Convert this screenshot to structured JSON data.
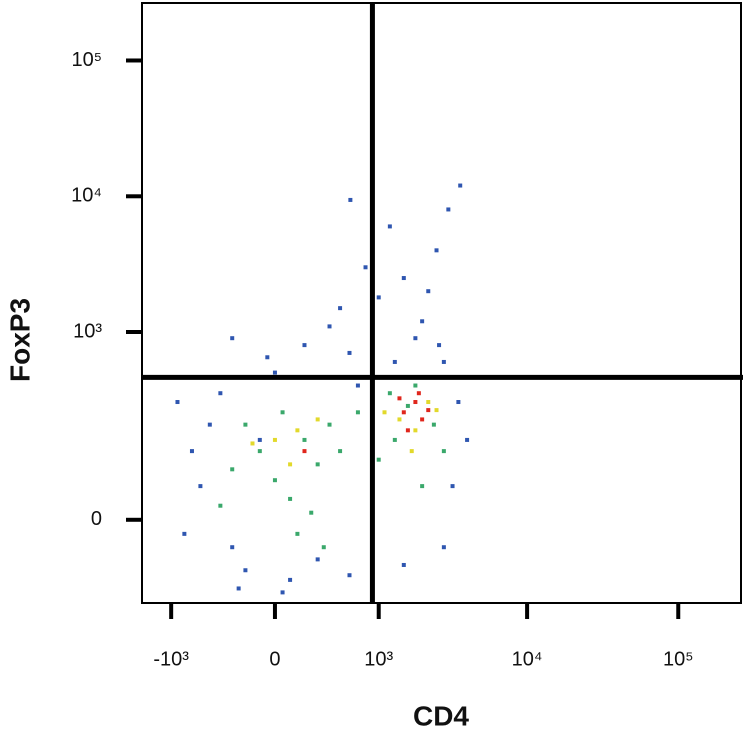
{
  "chart_data": {
    "type": "scatter",
    "xlabel": "CD4",
    "ylabel": "FoxP3",
    "xscale": "biexponential",
    "yscale": "biexponential",
    "xlim": [
      -1600,
      260000
    ],
    "ylim": [
      -160,
      265000
    ],
    "xticks": [
      {
        "value": -1000,
        "label": "-10³"
      },
      0,
      {
        "value": 1000,
        "label": "10³"
      },
      {
        "value": 10000,
        "label": "10⁴"
      },
      {
        "value": 100000,
        "label": "10⁵"
      }
    ],
    "yticks": [
      0,
      {
        "value": 1000,
        "label": "10³"
      },
      {
        "value": 10000,
        "label": "10⁴"
      },
      {
        "value": 100000,
        "label": "10⁵"
      }
    ],
    "quadrant_x": 900,
    "quadrant_y": 460,
    "series": [
      {
        "color": "#2f56b0",
        "x": [
          -600,
          -300,
          -100,
          -500,
          -200,
          100,
          300,
          600,
          -400,
          0,
          200,
          500,
          800,
          1200,
          1500,
          2000,
          2500,
          3000,
          1800,
          1000,
          600,
          -50,
          -700,
          -800,
          3500,
          4000,
          3200,
          2800,
          1500,
          900,
          -250,
          50,
          700,
          1300,
          2200,
          2600,
          -900,
          400,
          -300,
          3600,
          2800,
          610
        ],
        "y": [
          50,
          -40,
          150,
          200,
          -80,
          -100,
          -60,
          -90,
          350,
          500,
          800,
          1500,
          3000,
          6000,
          2500,
          1200,
          4000,
          8000,
          900,
          1800,
          700,
          650,
          120,
          -20,
          300,
          150,
          50,
          -40,
          -70,
          -100,
          -120,
          -130,
          400,
          600,
          2000,
          800,
          300,
          1100,
          900,
          12000,
          600,
          9400
        ]
      },
      {
        "color": "#3aa86b",
        "x": [
          -300,
          -100,
          0,
          100,
          200,
          300,
          400,
          -200,
          50,
          150,
          250,
          500,
          700,
          1000,
          1300,
          1600,
          2000,
          2400,
          2800,
          1200,
          1800,
          900,
          -400,
          350
        ],
        "y": [
          80,
          120,
          60,
          30,
          150,
          90,
          200,
          200,
          250,
          -20,
          10,
          120,
          250,
          100,
          150,
          280,
          50,
          200,
          120,
          350,
          400,
          300,
          20,
          -40
        ]
      },
      {
        "color": "#e2d92b",
        "x": [
          0,
          150,
          100,
          -150,
          300,
          1400,
          1800,
          2200,
          1100,
          1700,
          2500
        ],
        "y": [
          150,
          180,
          90,
          140,
          220,
          220,
          180,
          300,
          250,
          120,
          260
        ]
      },
      {
        "color": "#e0261c",
        "x": [
          1500,
          1800,
          2000,
          1600,
          2200,
          1900,
          200,
          1400
        ],
        "y": [
          250,
          300,
          220,
          180,
          260,
          350,
          120,
          320
        ]
      }
    ]
  }
}
